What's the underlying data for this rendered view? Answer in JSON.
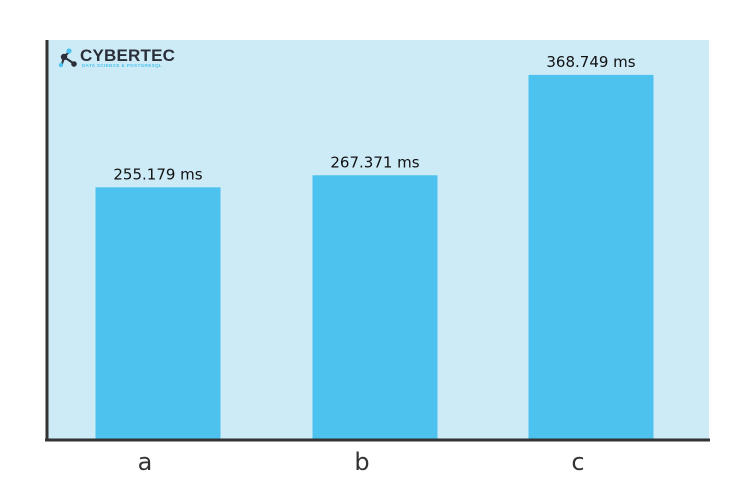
{
  "logo": {
    "name": "CYBERTEC",
    "tagline": "DATA SCIENCE & POSTGRESQL",
    "icon": "molecule-logo-icon"
  },
  "colors": {
    "plot_background": "#cdebf7",
    "bar": "#4dc2ee",
    "axis": "#333333"
  },
  "chart_data": {
    "type": "bar",
    "title": "",
    "xlabel": "",
    "ylabel": "",
    "categories": [
      "a",
      "b",
      "c"
    ],
    "values": [
      255.179,
      267.371,
      368.749
    ],
    "value_labels": [
      "255.179 ms",
      "267.371 ms",
      "368.749 ms"
    ],
    "unit": "ms",
    "ylim": [
      0,
      404
    ],
    "grid": false,
    "legend": "none"
  }
}
